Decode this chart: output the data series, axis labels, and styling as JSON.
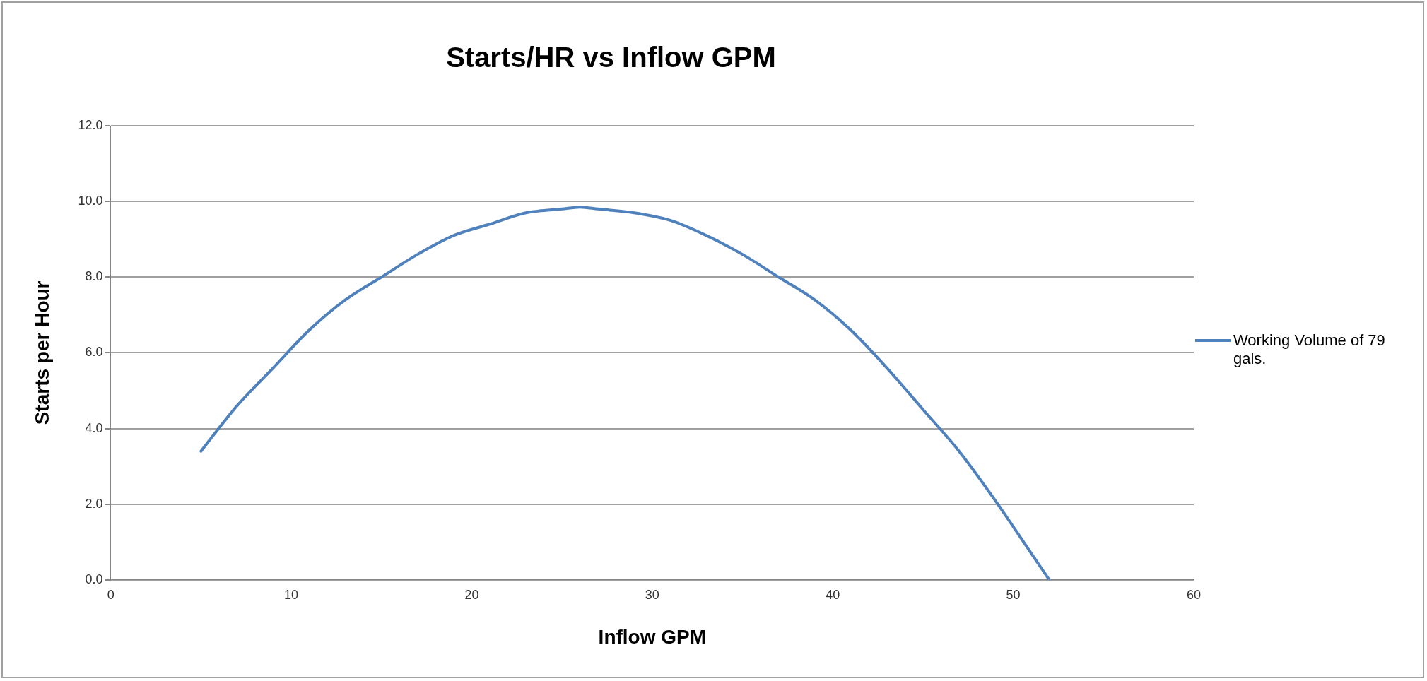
{
  "chart_data": {
    "type": "line",
    "title": "Starts/HR vs Inflow GPM",
    "xlabel": "Inflow GPM",
    "ylabel": "Starts per Hour",
    "xlim": [
      0,
      60
    ],
    "xticks": [
      0,
      10,
      20,
      30,
      40,
      50,
      60
    ],
    "ylim": [
      0,
      12
    ],
    "yticks": [
      {
        "value": 0,
        "label": "0.0"
      },
      {
        "value": 2,
        "label": "2.0"
      },
      {
        "value": 4,
        "label": "4.0"
      },
      {
        "value": 6,
        "label": "6.0"
      },
      {
        "value": 8,
        "label": "8.0"
      },
      {
        "value": 10,
        "label": "10.0"
      },
      {
        "value": 12,
        "label": "12.0"
      }
    ],
    "grid": "y",
    "legend": "right",
    "marker": "none",
    "line_style": "solid",
    "series": [
      {
        "name": "Working Volume of 79 gals.",
        "color": "#4f81bd",
        "x": [
          5,
          7,
          9,
          11,
          13,
          15,
          17,
          19,
          21,
          23,
          25,
          26,
          27,
          29,
          31,
          33,
          35,
          37,
          39,
          41,
          43,
          45,
          47,
          49,
          51,
          52
        ],
        "values": [
          3.4,
          4.6,
          5.6,
          6.6,
          7.4,
          8.0,
          8.6,
          9.1,
          9.4,
          9.7,
          9.8,
          9.85,
          9.8,
          9.7,
          9.5,
          9.1,
          8.6,
          8.0,
          7.4,
          6.6,
          5.6,
          4.5,
          3.4,
          2.1,
          0.7,
          0.0
        ]
      }
    ]
  }
}
